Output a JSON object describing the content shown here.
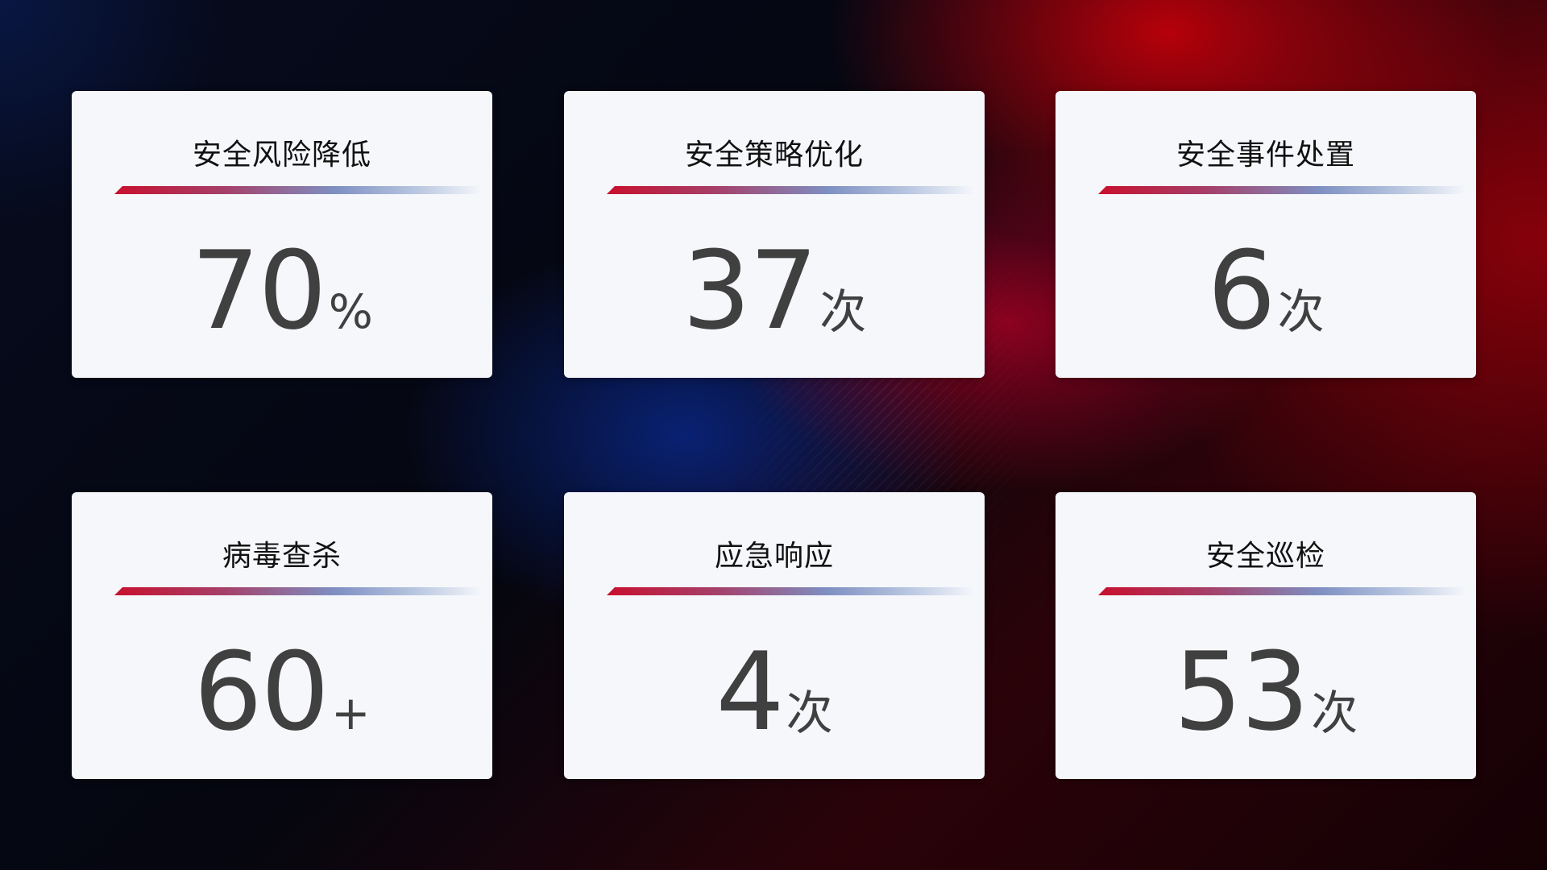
{
  "cards": [
    {
      "title": "安全风险降低",
      "value": "70",
      "unit": "%"
    },
    {
      "title": "安全策略优化",
      "value": "37",
      "unit": "次"
    },
    {
      "title": "安全事件处置",
      "value": "6",
      "unit": "次"
    },
    {
      "title": "病毒查杀",
      "value": "60",
      "unit": "+"
    },
    {
      "title": "应急响应",
      "value": "4",
      "unit": "次"
    },
    {
      "title": "安全巡检",
      "value": "53",
      "unit": "次"
    }
  ],
  "colors": {
    "accent_red": "#c8102e",
    "accent_blue": "#7e8fc2",
    "card_bg": "#f5f7fb",
    "value_text": "#404040"
  }
}
